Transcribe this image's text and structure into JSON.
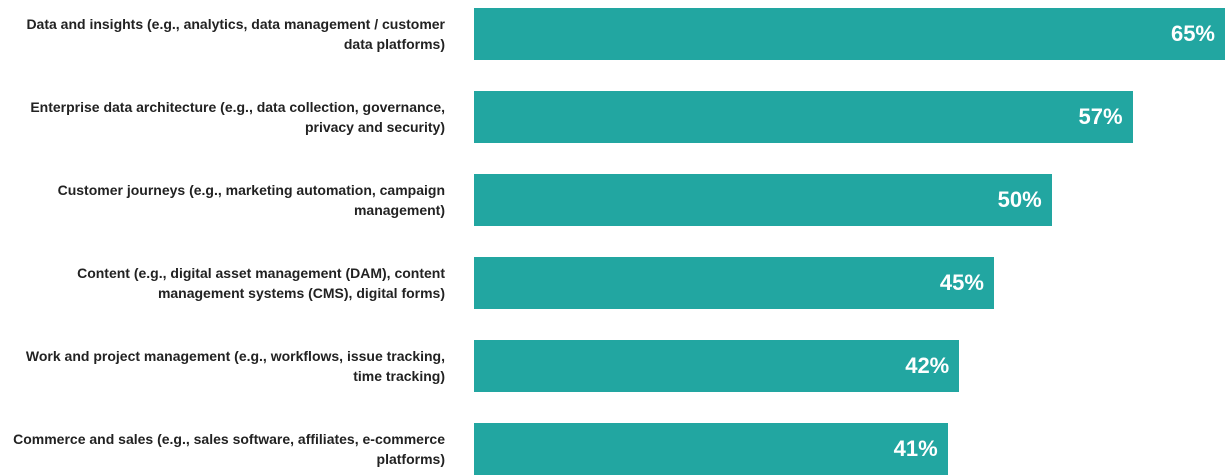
{
  "chart_data": {
    "type": "bar",
    "orientation": "horizontal",
    "categories": [
      "Data and insights (e.g., analytics, data management / customer data platforms)",
      "Enterprise data architecture (e.g., data collection, governance, privacy and security)",
      "Customer journeys (e.g., marketing automation, campaign management)",
      "Content (e.g., digital asset management (DAM), content management systems (CMS), digital forms)",
      "Work and project management (e.g., workflows, issue tracking, time tracking)",
      "Commerce and sales (e.g., sales software, affiliates, e-commerce platforms)"
    ],
    "values": [
      65,
      57,
      50,
      45,
      42,
      41
    ],
    "value_labels": [
      "65%",
      "57%",
      "50%",
      "45%",
      "42%",
      "41%"
    ],
    "color": "#22a6a1"
  }
}
